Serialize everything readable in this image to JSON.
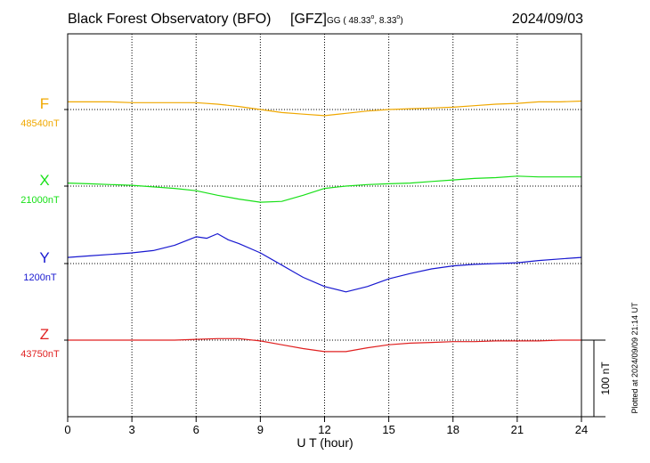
{
  "chart_data": {
    "type": "line",
    "header": {
      "title": "Black Forest Observatory (BFO)",
      "institute": "[GFZ]",
      "coords_prefix": "GG ( 48.33",
      "coords_sep": ",   8.33",
      "coords_suffix": ")",
      "date": "2024/09/03"
    },
    "xlabel": "U T (hour)",
    "xlim": [
      0,
      24
    ],
    "x_ticks": [
      0,
      3,
      6,
      9,
      12,
      15,
      18,
      21,
      24
    ],
    "x_tick_labels": [
      "0",
      "3",
      "6",
      "9",
      "12",
      "15",
      "18",
      "21",
      "24"
    ],
    "grid": true,
    "scale_bar_label": "100 nT",
    "scale_bar_nT": 100,
    "plotted_note": "Plotted at 2024/09/09 21:14 UT",
    "series": [
      {
        "name": "F",
        "baseline_label": "48540nT",
        "baseline_nT": 48540,
        "color": "#f0a800",
        "x": [
          0,
          1,
          2,
          3,
          4,
          5,
          6,
          7,
          8,
          9,
          10,
          11,
          12,
          13,
          14,
          15,
          16,
          17,
          18,
          19,
          20,
          21,
          22,
          23,
          24
        ],
        "y": [
          48550,
          48550,
          48550,
          48549,
          48549,
          48549,
          48549,
          48547,
          48544,
          48540,
          48536,
          48534,
          48532,
          48535,
          48538,
          48540,
          48541,
          48542,
          48543,
          48545,
          48547,
          48548,
          48550,
          48550,
          48551
        ]
      },
      {
        "name": "X",
        "baseline_label": "21000nT",
        "baseline_nT": 21000,
        "color": "#18e018",
        "x": [
          0,
          1,
          2,
          3,
          4,
          5,
          6,
          7,
          8,
          9,
          10,
          11,
          12,
          13,
          14,
          15,
          16,
          17,
          18,
          19,
          20,
          21,
          22,
          23,
          24
        ],
        "y": [
          21004,
          21003,
          21002,
          21001,
          20999,
          20997,
          20994,
          20988,
          20983,
          20979,
          20980,
          20988,
          20997,
          21000,
          21002,
          21003,
          21004,
          21006,
          21008,
          21010,
          21011,
          21013,
          21012,
          21012,
          21012
        ]
      },
      {
        "name": "Y",
        "baseline_label": "1200nT",
        "baseline_nT": 1200,
        "color": "#1818d0",
        "x": [
          0,
          1,
          2,
          3,
          4,
          5,
          6,
          6.5,
          7,
          7.5,
          8,
          9,
          10,
          10.5,
          11,
          12,
          13,
          14,
          15,
          16,
          17,
          18,
          19,
          20,
          21,
          22,
          23,
          24
        ],
        "y": [
          1208,
          1210,
          1212,
          1214,
          1217,
          1224,
          1235,
          1233,
          1239,
          1231,
          1226,
          1214,
          1198,
          1190,
          1182,
          1170,
          1163,
          1170,
          1180,
          1187,
          1193,
          1197,
          1199,
          1200,
          1201,
          1204,
          1206,
          1208
        ]
      },
      {
        "name": "Z",
        "baseline_label": "43750nT",
        "baseline_nT": 43750,
        "color": "#e02020",
        "x": [
          0,
          1,
          2,
          3,
          4,
          5,
          6,
          7,
          8,
          9,
          10,
          11,
          12,
          13,
          14,
          15,
          16,
          17,
          18,
          19,
          20,
          21,
          22,
          23,
          24
        ],
        "y": [
          43750,
          43750,
          43750,
          43750,
          43750,
          43750,
          43751,
          43752,
          43752,
          43749,
          43744,
          43739,
          43735,
          43735,
          43740,
          43744,
          43746,
          43747,
          43748,
          43748,
          43749,
          43749,
          43749,
          43750,
          43750
        ]
      }
    ]
  }
}
